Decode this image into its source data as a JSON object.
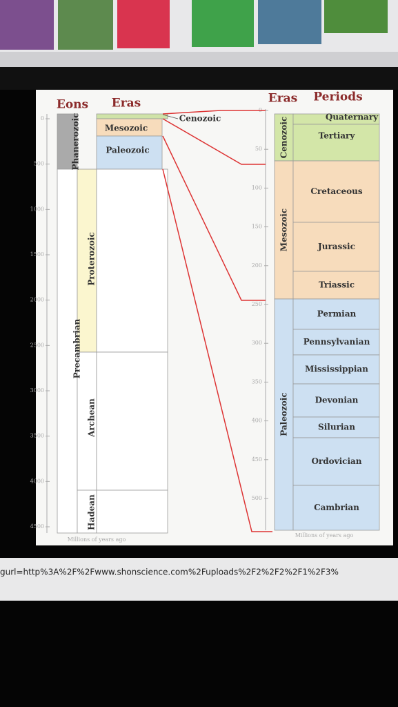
{
  "left": {
    "headers": [
      "Eons",
      "Eras"
    ],
    "eons": [
      "Phanerozoic",
      "Precambrian"
    ],
    "subeons": [
      "Proterozoic",
      "Archean",
      "Hadean"
    ],
    "eras": [
      "Mesozoic",
      "Paleozoic"
    ],
    "callout": "Cenozoic",
    "ticks": [
      0,
      500,
      1000,
      1500,
      2000,
      2500,
      3000,
      3500,
      4000,
      4500
    ],
    "axis_label": "Millions of years ago"
  },
  "right": {
    "headers": [
      "Eras",
      "Periods"
    ],
    "eras": [
      "Cenozoic",
      "Mesozoic",
      "Paleozoic"
    ],
    "periods": [
      "Quaternary",
      "Tertiary",
      "Cretaceous",
      "Jurassic",
      "Triassic",
      "Permian",
      "Pennsylvanian",
      "Mississippian",
      "Devonian",
      "Silurian",
      "Ordovician",
      "Cambrian"
    ],
    "ticks": [
      0,
      50,
      100,
      150,
      200,
      250,
      300,
      350,
      400,
      450,
      500
    ],
    "axis_label": "Millions of years ago"
  },
  "url": "gurl=http%3A%2F%2Fwww.shonscience.com%2Fuploads%2F2%2F2%2F1%2F3%"
}
